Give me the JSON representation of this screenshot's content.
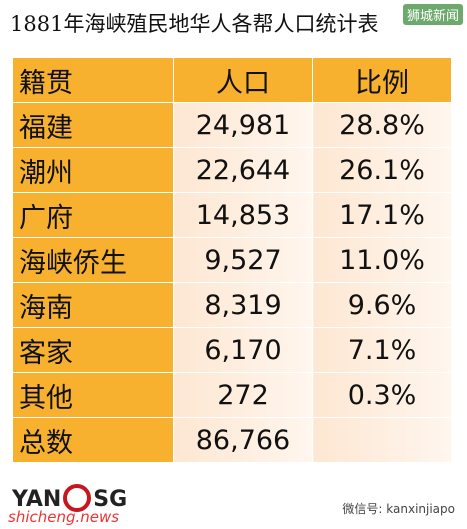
{
  "header": {
    "title": "1881年海峡殖民地华人各帮人口统计表",
    "watermark": "狮城新闻"
  },
  "table": {
    "columns": [
      "籍贯",
      "人口",
      "比例"
    ],
    "rows": [
      [
        "福建",
        "24,981",
        "28.8%"
      ],
      [
        "潮州",
        "22,644",
        "26.1%"
      ],
      [
        "广府",
        "14,853",
        "17.1%"
      ],
      [
        "海峡侨生",
        "9,527",
        "11.0%"
      ],
      [
        "海南",
        "8,319",
        "9.6%"
      ],
      [
        "客家",
        "6,170",
        "7.1%"
      ],
      [
        "其他",
        "272",
        "0.3%"
      ],
      [
        "总数",
        "86,766"
      ]
    ]
  },
  "footer": {
    "logo_left": "YAN",
    "logo_right": "SG",
    "site": "shicheng.news",
    "wechat": "微信号: kanxinjiapo"
  }
}
